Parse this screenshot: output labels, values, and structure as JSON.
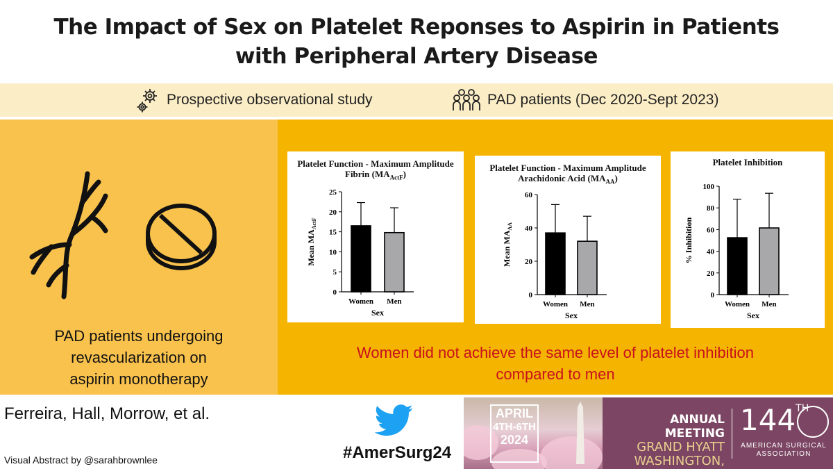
{
  "title": {
    "line1": "The Impact of Sex on Platelet Reponses to Aspirin in Patients",
    "line2": "with Peripheral Artery Disease"
  },
  "study_info": {
    "design": "Prospective observational study",
    "population": "PAD patients (Dec 2020-Sept 2023)"
  },
  "left_panel": {
    "caption_line1": "PAD patients undergoing",
    "caption_line2": "revascularization on",
    "caption_line3": "aspirin monotherapy"
  },
  "conclusion": {
    "line1": "Women did not achieve the same level of platelet inhibition",
    "line2": "compared to men"
  },
  "charts": [
    {
      "title_line1": "Platelet Function - Maximum Amplitude",
      "title_line2": "Fibrin (MA",
      "title_sub": "ActF",
      "title_end": ")",
      "ylabel": "Mean MA",
      "ylabel_sub": "ActF",
      "xlabel": "Sex",
      "categories": [
        "Women",
        "Men"
      ],
      "values": [
        16.5,
        14.8
      ],
      "errors": [
        22.3,
        21.0
      ],
      "ylim": [
        0,
        25
      ],
      "ticks": [
        "0",
        "5",
        "10",
        "15",
        "20",
        "25"
      ]
    },
    {
      "title_line1": "Platelet Function - Maximum Amplitude",
      "title_line2": "Arachidonic Acid (MA",
      "title_sub": "AA",
      "title_end": ")",
      "ylabel": "Mean MA",
      "ylabel_sub": "AA",
      "xlabel": "Sex",
      "categories": [
        "Women",
        "Men"
      ],
      "values": [
        37.0,
        32.0
      ],
      "errors": [
        54.0,
        47.0
      ],
      "ylim": [
        0,
        60
      ],
      "ticks": [
        "0",
        "20",
        "40",
        "60"
      ]
    },
    {
      "title_line1": "Platelet Inhibition",
      "title_line2": "",
      "title_sub": "",
      "title_end": "",
      "ylabel": "% Inhibition",
      "ylabel_sub": "",
      "xlabel": "Sex",
      "categories": [
        "Women",
        "Men"
      ],
      "values": [
        52.5,
        61.5
      ],
      "errors": [
        88.0,
        93.5
      ],
      "ylim": [
        0,
        100
      ],
      "ticks": [
        "0",
        "20",
        "40",
        "60",
        "80",
        "100"
      ]
    }
  ],
  "chart_data": [
    {
      "type": "bar",
      "title": "Platelet Function - Maximum Amplitude Fibrin (MAActF)",
      "categories": [
        "Women",
        "Men"
      ],
      "values": [
        16.5,
        14.8
      ],
      "error_upper": [
        22.3,
        21.0
      ],
      "xlabel": "Sex",
      "ylabel": "Mean MAActF",
      "ylim": [
        0,
        25
      ]
    },
    {
      "type": "bar",
      "title": "Platelet Function - Maximum Amplitude Arachidonic Acid (MAAA)",
      "categories": [
        "Women",
        "Men"
      ],
      "values": [
        37.0,
        32.0
      ],
      "error_upper": [
        54.0,
        47.0
      ],
      "xlabel": "Sex",
      "ylabel": "Mean MAAA",
      "ylim": [
        0,
        60
      ]
    },
    {
      "type": "bar",
      "title": "Platelet Inhibition",
      "categories": [
        "Women",
        "Men"
      ],
      "values": [
        52.5,
        61.5
      ],
      "error_upper": [
        88.0,
        93.5
      ],
      "xlabel": "Sex",
      "ylabel": "% Inhibition",
      "ylim": [
        0,
        100
      ]
    }
  ],
  "footer": {
    "authors": "Ferreira, Hall, Morrow, et al.",
    "byline": "Visual Abstract by @sarahbrownlee",
    "hashtag": "#AmerSurg24"
  },
  "banner": {
    "date_line1": "APRIL",
    "date_line2": "4TH-6TH",
    "date_line3": "2024",
    "meeting": "ANNUAL MEETING",
    "venue": "GRAND HYATT",
    "city": "WASHINGTON, D.C.",
    "number": "144",
    "number_suffix": "TH",
    "assoc_line1": "AMERICAN SURGICAL",
    "assoc_line2": "ASSOCIATION"
  },
  "colors": {
    "women_bar": "#000000",
    "men_bar": "#a8a8aa",
    "left_panel": "#f9c24d",
    "right_panel": "#f5b400",
    "conclusion_text": "#c8101e"
  }
}
